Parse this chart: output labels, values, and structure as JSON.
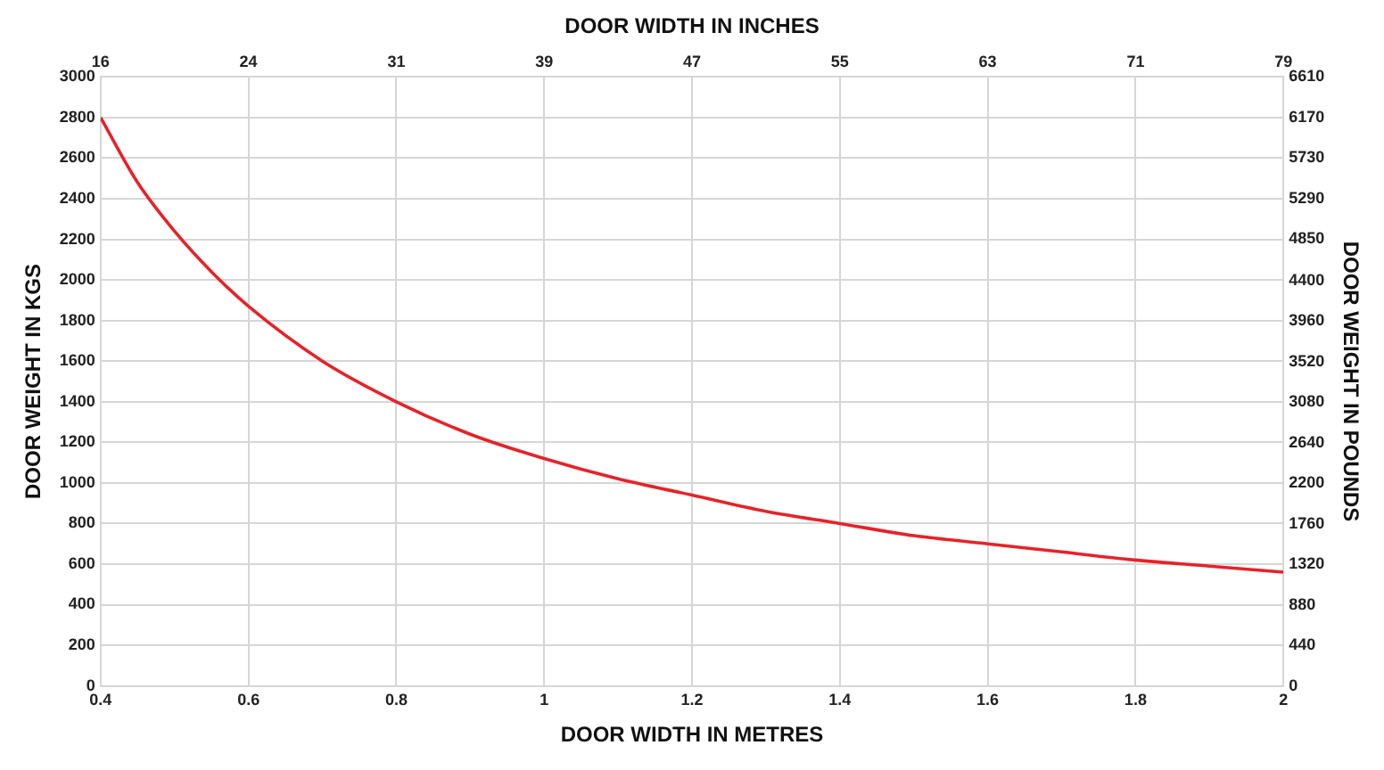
{
  "chart_data": {
    "type": "line",
    "xlabel": "DOOR WIDTH IN METRES",
    "x2label": "DOOR WIDTH IN INCHES",
    "ylabel": "DOOR WEIGHT IN KGS",
    "y2label": "DOOR WEIGHT IN POUNDS",
    "x": [
      0.4,
      0.45,
      0.5,
      0.55,
      0.6,
      0.7,
      0.8,
      0.9,
      1,
      1.1,
      1.2,
      1.3,
      1.4,
      1.5,
      1.6,
      1.7,
      1.8,
      1.9,
      2
    ],
    "series": [
      {
        "color": "#e52329",
        "values": [
          2800,
          2480,
          2240,
          2040,
          1870,
          1600,
          1400,
          1240,
          1120,
          1020,
          940,
          860,
          800,
          740,
          700,
          660,
          620,
          590,
          560
        ]
      }
    ],
    "xlim": [
      0.4,
      2
    ],
    "xticks": [
      0.4,
      0.6,
      0.8,
      1,
      1.2,
      1.4,
      1.6,
      1.8,
      2
    ],
    "x2lim": [
      15.75,
      78.74
    ],
    "x2ticks": [
      {
        "value": 15.75,
        "label": "16"
      },
      {
        "value": 23.62,
        "label": "24"
      },
      {
        "value": 31.5,
        "label": "31"
      },
      {
        "value": 39.37,
        "label": "39"
      },
      {
        "value": 47.24,
        "label": "47"
      },
      {
        "value": 55.12,
        "label": "55"
      },
      {
        "value": 62.99,
        "label": "63"
      },
      {
        "value": 70.87,
        "label": "71"
      },
      {
        "value": 78.74,
        "label": "79"
      }
    ],
    "ylim": [
      0,
      3000
    ],
    "yticks": [
      0,
      200,
      400,
      600,
      800,
      1000,
      1200,
      1400,
      1600,
      1800,
      2000,
      2200,
      2400,
      2600,
      2800,
      3000
    ],
    "y2lim": [
      0,
      6610
    ],
    "y2ticks": [
      0,
      440,
      880,
      1320,
      1760,
      2200,
      2640,
      3080,
      3520,
      3960,
      4400,
      4850,
      5290,
      5730,
      6170,
      6610
    ],
    "grid": true,
    "legend": false,
    "marker": "none",
    "line_style": "solid"
  }
}
